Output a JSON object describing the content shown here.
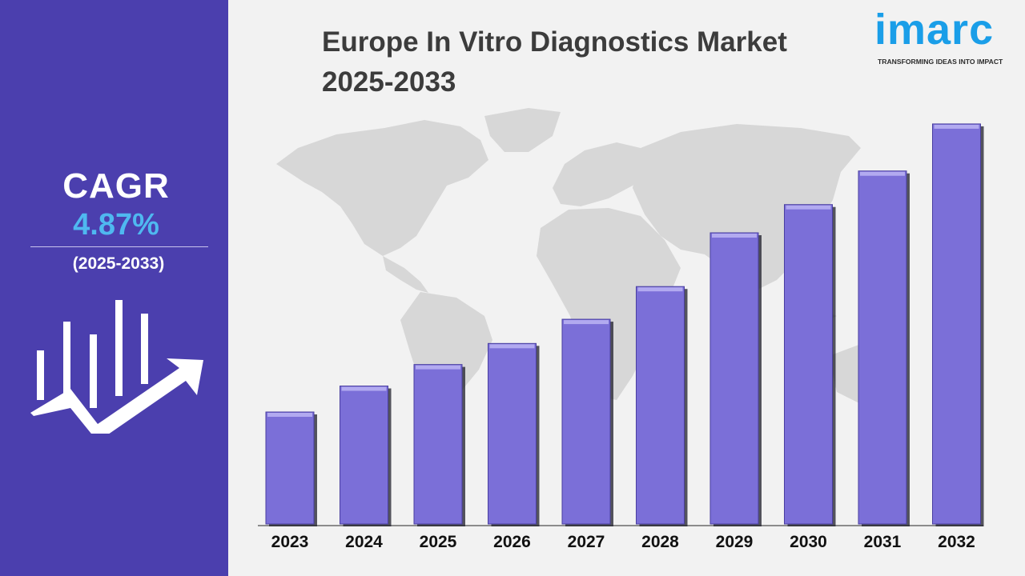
{
  "title_line1": "Europe In Vitro Diagnostics Market",
  "title_line2": "2025-2033",
  "logo": {
    "word": "imarc",
    "tagline": "TRANSFORMING IDEAS INTO IMPACT"
  },
  "sidebar": {
    "cagr_label": "CAGR",
    "cagr_value": "4.87%",
    "period": "(2025-2033)",
    "icon": "growth-chart-icon"
  },
  "colors": {
    "sidebar": "#4b3fae",
    "bar": "#7b6fd8",
    "accent": "#4fb8f0",
    "logo": "#1a9ee8"
  },
  "chart_data": {
    "type": "bar",
    "title": "Europe In Vitro Diagnostics Market 2025-2033",
    "xlabel": "",
    "ylabel": "",
    "categories": [
      "2023",
      "2024",
      "2025",
      "2026",
      "2027",
      "2028",
      "2029",
      "2030",
      "2031",
      "2032"
    ],
    "values": [
      25.0,
      30.8,
      35.6,
      40.3,
      45.7,
      53.0,
      65.0,
      71.3,
      78.8,
      89.3
    ],
    "value_labels_shown": false,
    "ylim": [
      0,
      100
    ],
    "grid": false,
    "legend": "none"
  }
}
